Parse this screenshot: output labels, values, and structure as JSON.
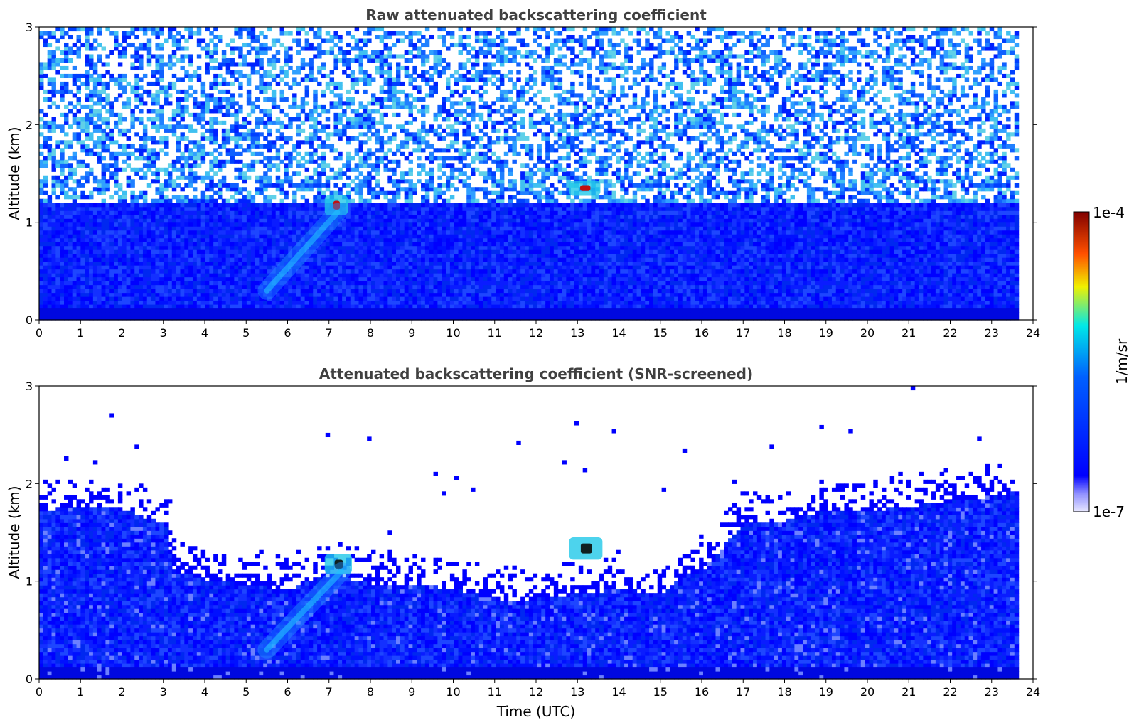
{
  "chart_data": [
    {
      "type": "heatmap",
      "title": "Raw attenuated backscattering coefficient",
      "xlabel": "",
      "ylabel": "Altitude (km)",
      "xlim": [
        0,
        24
      ],
      "ylim": [
        0,
        3
      ],
      "x_ticks": [
        0,
        1,
        2,
        3,
        4,
        5,
        6,
        7,
        8,
        9,
        10,
        11,
        12,
        13,
        14,
        15,
        16,
        17,
        18,
        19,
        20,
        21,
        22,
        23,
        24
      ],
      "y_ticks": [
        0,
        1,
        2,
        3
      ],
      "data_end_time": 23.65,
      "features": [
        {
          "kind": "dense boundary layer",
          "time": [
            0,
            23.65
          ],
          "altitude_top_km": 1.2
        },
        {
          "kind": "noisy background",
          "time": [
            0,
            23.65
          ],
          "altitude_km": [
            1.2,
            3
          ]
        },
        {
          "kind": "strong cloud",
          "time": [
            7.0,
            7.35
          ],
          "altitude_km": [
            1.1,
            1.25
          ],
          "peak": "1e-4"
        },
        {
          "kind": "strong cloud",
          "time": [
            12.9,
            13.45
          ],
          "altitude_km": [
            1.3,
            1.4
          ],
          "peak": "1e-4"
        },
        {
          "kind": "aerosol plume",
          "time": [
            5.5,
            7.2
          ],
          "altitude_km": [
            0.3,
            1.1
          ]
        }
      ]
    },
    {
      "type": "heatmap",
      "title": "Attenuated backscattering coefficient (SNR-screened)",
      "xlabel": "Time (UTC)",
      "ylabel": "Altitude (km)",
      "xlim": [
        0,
        24
      ],
      "ylim": [
        0,
        3
      ],
      "x_ticks": [
        0,
        1,
        2,
        3,
        4,
        5,
        6,
        7,
        8,
        9,
        10,
        11,
        12,
        13,
        14,
        15,
        16,
        17,
        18,
        19,
        20,
        21,
        22,
        23,
        24
      ],
      "y_ticks": [
        0,
        1,
        2,
        3
      ],
      "data_end_time": 23.65,
      "boundary_layer_top_km": [
        [
          0,
          1.7
        ],
        [
          1,
          1.75
        ],
        [
          2,
          1.72
        ],
        [
          3,
          1.55
        ],
        [
          3.2,
          1.1
        ],
        [
          4,
          1.0
        ],
        [
          5,
          0.95
        ],
        [
          6,
          0.9
        ],
        [
          7,
          1.05
        ],
        [
          8,
          0.95
        ],
        [
          9,
          0.95
        ],
        [
          10,
          0.9
        ],
        [
          11,
          0.8
        ],
        [
          12,
          0.8
        ],
        [
          13,
          0.85
        ],
        [
          14,
          0.9
        ],
        [
          15,
          0.85
        ],
        [
          15.6,
          1.05
        ],
        [
          16,
          1.1
        ],
        [
          17,
          1.6
        ],
        [
          18,
          1.6
        ],
        [
          19,
          1.7
        ],
        [
          20,
          1.7
        ],
        [
          21,
          1.75
        ],
        [
          22,
          1.8
        ],
        [
          23,
          1.85
        ],
        [
          23.65,
          1.9
        ]
      ],
      "features": [
        {
          "kind": "strong cloud",
          "time": [
            7.0,
            7.45
          ],
          "altitude_km": [
            1.1,
            1.25
          ],
          "peak": "1e-4"
        },
        {
          "kind": "strong cloud",
          "time": [
            12.9,
            13.5
          ],
          "altitude_km": [
            1.25,
            1.42
          ],
          "peak": "1e-4"
        },
        {
          "kind": "aerosol plume",
          "time": [
            5.5,
            7.3
          ],
          "altitude_km": [
            0.3,
            1.1
          ]
        }
      ]
    }
  ],
  "colorbar": {
    "label": "1/m/sr",
    "max_label": "1e-4",
    "min_label": "1e-7",
    "colormap": "jet",
    "colors": [
      "#ffffff",
      "#0000ff",
      "#00ffff",
      "#ffff00",
      "#ff0000",
      "#800000"
    ]
  }
}
